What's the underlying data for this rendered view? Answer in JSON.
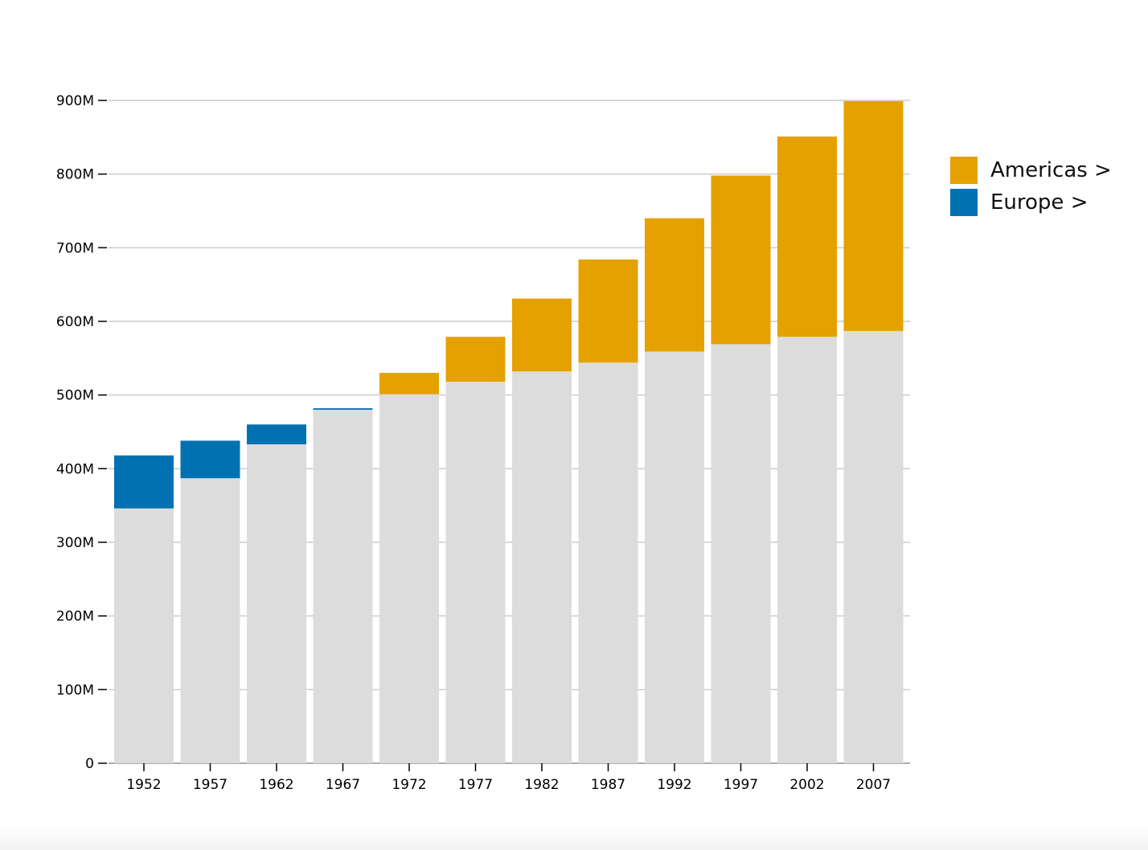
{
  "chart_data": {
    "type": "bar",
    "stacked": true,
    "categories": [
      "1952",
      "1957",
      "1962",
      "1967",
      "1972",
      "1977",
      "1982",
      "1987",
      "1992",
      "1997",
      "2002",
      "2007"
    ],
    "base": {
      "color": "#dcdcdc",
      "values": [
        346,
        387,
        433,
        480,
        501,
        518,
        532,
        544,
        559,
        569,
        579,
        587
      ]
    },
    "series": [
      {
        "name": "Americas >",
        "color": "#e4a100",
        "values": [
          0,
          0,
          0,
          0,
          29,
          61,
          99,
          140,
          181,
          229,
          272,
          312
        ]
      },
      {
        "name": "Europe >",
        "color": "#0072b2",
        "values": [
          72,
          51,
          27,
          2,
          0,
          0,
          0,
          0,
          0,
          0,
          0,
          0
        ]
      }
    ],
    "y_ticks": [
      0,
      100,
      200,
      300,
      400,
      500,
      600,
      700,
      800,
      900
    ],
    "y_tick_labels": [
      "0",
      "100M",
      "200M",
      "300M",
      "400M",
      "500M",
      "600M",
      "700M",
      "800M",
      "900M"
    ],
    "ylim": [
      0,
      900
    ],
    "grid": true,
    "legend_position": "right"
  },
  "colors": {
    "grid": "#cccccc",
    "axis": "#999999"
  }
}
